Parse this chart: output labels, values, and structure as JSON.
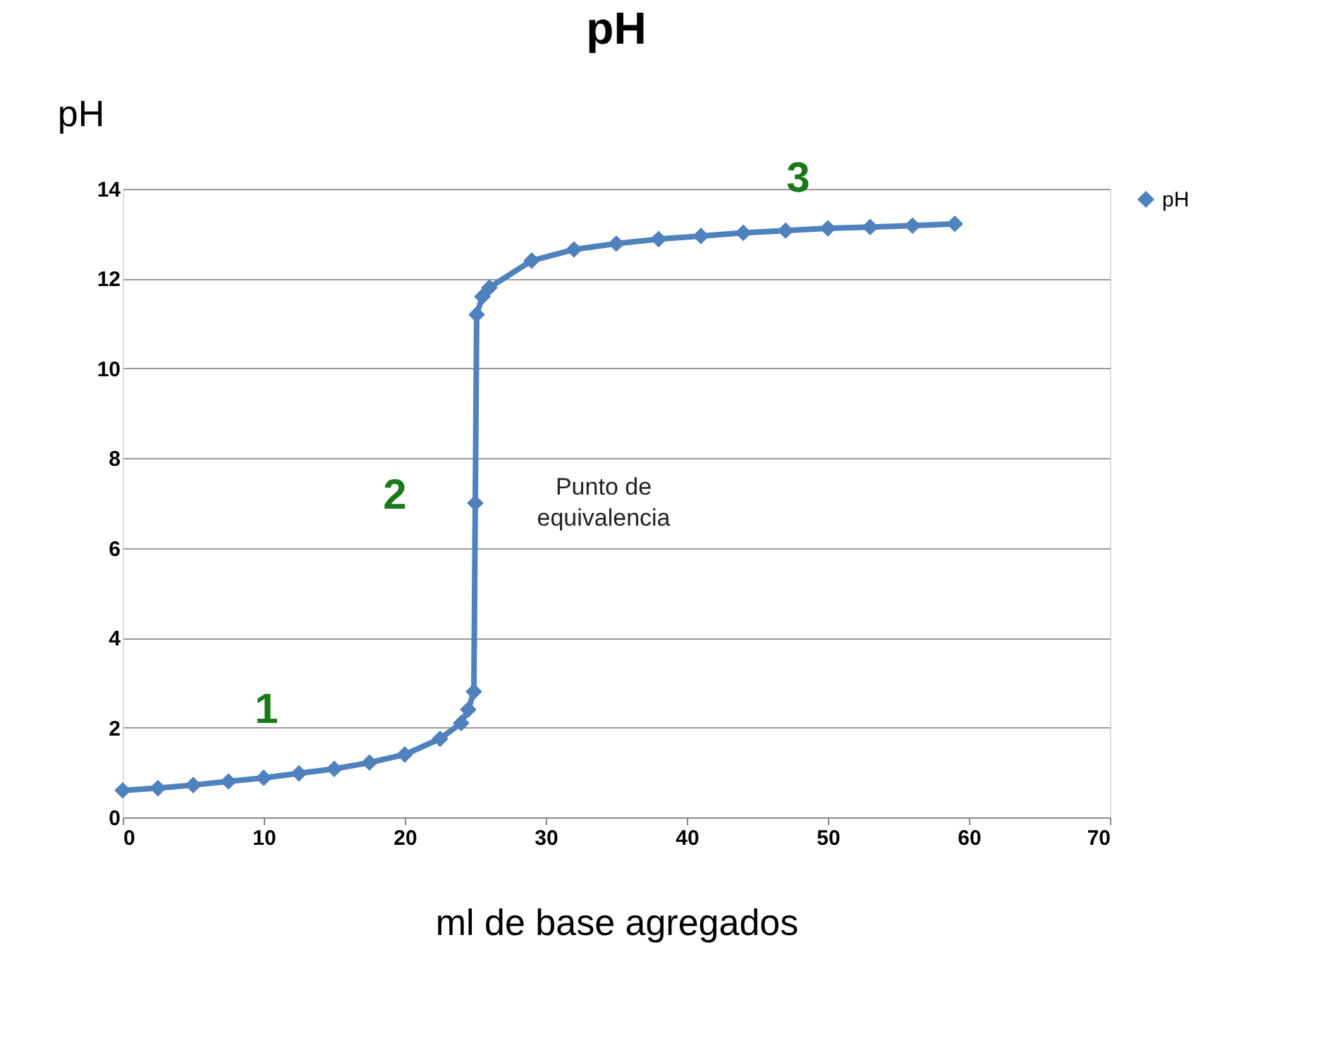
{
  "chart_data": {
    "type": "line",
    "title": "pH",
    "xlabel": "ml de base agregados",
    "ylabel": "pH",
    "x": [
      0,
      2.5,
      5,
      7.5,
      10,
      12.5,
      15,
      17.5,
      20,
      22.5,
      24,
      24.5,
      24.9,
      25,
      25.1,
      25.5,
      26,
      29,
      32,
      35,
      38,
      41,
      44,
      47,
      50,
      53,
      56,
      59
    ],
    "series": [
      {
        "name": "pH",
        "color": "#4f81bd",
        "values": [
          0.6,
          0.65,
          0.72,
          0.8,
          0.88,
          0.98,
          1.08,
          1.22,
          1.4,
          1.75,
          2.1,
          2.4,
          2.8,
          7.0,
          11.2,
          11.6,
          11.8,
          12.4,
          12.65,
          12.78,
          12.88,
          12.95,
          13.02,
          13.07,
          13.12,
          13.15,
          13.18,
          13.22
        ]
      }
    ],
    "xlim": [
      0,
      70
    ],
    "xticks": [
      0,
      10,
      20,
      30,
      40,
      50,
      60,
      70
    ],
    "ylim": [
      0,
      14
    ],
    "yticks": [
      0,
      2,
      4,
      6,
      8,
      10,
      12,
      14
    ],
    "grid": "y",
    "legend": "right",
    "marker": "diamond",
    "line_style": "solid",
    "annotations": [
      "1",
      "2",
      "3",
      "Punto de equivalencia"
    ]
  }
}
